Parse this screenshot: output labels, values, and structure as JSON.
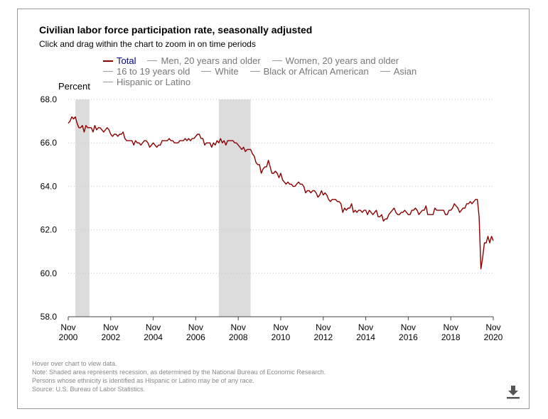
{
  "header": {
    "title": "Civilian labor force participation rate, seasonally adjusted",
    "subtitle": "Click and drag within the chart to zoom in on time periods"
  },
  "legend": [
    {
      "label": "Total",
      "active": true
    },
    {
      "label": "Men, 20 years and older",
      "active": false
    },
    {
      "label": "Women, 20 years and older",
      "active": false
    },
    {
      "label": "16 to 19 years old",
      "active": false
    },
    {
      "label": "White",
      "active": false
    },
    {
      "label": "Black or African American",
      "active": false
    },
    {
      "label": "Asian",
      "active": false
    },
    {
      "label": "Hispanic or Latino",
      "active": false
    }
  ],
  "footer": {
    "hover_hint": "Hover over chart to view data.",
    "note_recession": "Note: Shaded area represents recession, as determined by the National Bureau of Economic Research.",
    "note_ethnicity": "Persons whose ethnicity is identified as Hispanic or Latino may be of any race.",
    "source": "Source: U.S. Bureau of Labor Statistics."
  },
  "icons": {
    "download": "download-icon"
  },
  "colors": {
    "series": "#8b0000",
    "recession": "#dcdcdc",
    "active_legend_text": "#00008b"
  },
  "chart_data": {
    "type": "line",
    "ylabel": "Percent",
    "ylim": [
      58.0,
      68.0
    ],
    "yticks": [
      "58.0",
      "60.0",
      "62.0",
      "64.0",
      "66.0",
      "68.0"
    ],
    "xlim": [
      "2000-11",
      "2020-11"
    ],
    "xticks": [
      {
        "month": "Nov",
        "year": "2000"
      },
      {
        "month": "Nov",
        "year": "2002"
      },
      {
        "month": "Nov",
        "year": "2004"
      },
      {
        "month": "Nov",
        "year": "2006"
      },
      {
        "month": "Nov",
        "year": "2008"
      },
      {
        "month": "Nov",
        "year": "2010"
      },
      {
        "month": "Nov",
        "year": "2012"
      },
      {
        "month": "Nov",
        "year": "2014"
      },
      {
        "month": "Nov",
        "year": "2016"
      },
      {
        "month": "Nov",
        "year": "2018"
      },
      {
        "month": "Nov",
        "year": "2020"
      }
    ],
    "grid": "horizontal dotted",
    "recessions": [
      {
        "start": "2001-03",
        "end": "2001-11"
      },
      {
        "start": "2007-12",
        "end": "2009-06"
      }
    ],
    "series": [
      {
        "name": "Total",
        "points": [
          [
            "2000-11",
            66.9
          ],
          [
            "2000-12",
            67.0
          ],
          [
            "2001-01",
            67.2
          ],
          [
            "2001-02",
            67.1
          ],
          [
            "2001-03",
            67.2
          ],
          [
            "2001-04",
            66.9
          ],
          [
            "2001-05",
            66.7
          ],
          [
            "2001-06",
            66.7
          ],
          [
            "2001-07",
            66.8
          ],
          [
            "2001-08",
            66.5
          ],
          [
            "2001-09",
            66.8
          ],
          [
            "2001-10",
            66.7
          ],
          [
            "2001-11",
            66.7
          ],
          [
            "2001-12",
            66.7
          ],
          [
            "2002-01",
            66.5
          ],
          [
            "2002-02",
            66.8
          ],
          [
            "2002-03",
            66.6
          ],
          [
            "2002-04",
            66.7
          ],
          [
            "2002-05",
            66.7
          ],
          [
            "2002-06",
            66.6
          ],
          [
            "2002-07",
            66.5
          ],
          [
            "2002-08",
            66.6
          ],
          [
            "2002-09",
            66.7
          ],
          [
            "2002-10",
            66.6
          ],
          [
            "2002-11",
            66.4
          ],
          [
            "2002-12",
            66.3
          ],
          [
            "2003-01",
            66.4
          ],
          [
            "2003-02",
            66.4
          ],
          [
            "2003-03",
            66.3
          ],
          [
            "2003-04",
            66.4
          ],
          [
            "2003-05",
            66.4
          ],
          [
            "2003-06",
            66.5
          ],
          [
            "2003-07",
            66.2
          ],
          [
            "2003-08",
            66.1
          ],
          [
            "2003-09",
            66.1
          ],
          [
            "2003-10",
            66.1
          ],
          [
            "2003-11",
            66.1
          ],
          [
            "2003-12",
            65.9
          ],
          [
            "2004-01",
            66.1
          ],
          [
            "2004-02",
            66.0
          ],
          [
            "2004-03",
            66.0
          ],
          [
            "2004-04",
            65.9
          ],
          [
            "2004-05",
            66.0
          ],
          [
            "2004-06",
            66.1
          ],
          [
            "2004-07",
            66.1
          ],
          [
            "2004-08",
            66.0
          ],
          [
            "2004-09",
            65.8
          ],
          [
            "2004-10",
            65.9
          ],
          [
            "2004-11",
            66.0
          ],
          [
            "2004-12",
            65.9
          ],
          [
            "2005-01",
            65.8
          ],
          [
            "2005-02",
            65.9
          ],
          [
            "2005-03",
            65.9
          ],
          [
            "2005-04",
            66.1
          ],
          [
            "2005-05",
            66.1
          ],
          [
            "2005-06",
            66.1
          ],
          [
            "2005-07",
            66.1
          ],
          [
            "2005-08",
            66.2
          ],
          [
            "2005-09",
            66.1
          ],
          [
            "2005-10",
            66.1
          ],
          [
            "2005-11",
            66.0
          ],
          [
            "2005-12",
            66.0
          ],
          [
            "2006-01",
            66.0
          ],
          [
            "2006-02",
            66.1
          ],
          [
            "2006-03",
            66.1
          ],
          [
            "2006-04",
            66.1
          ],
          [
            "2006-05",
            66.2
          ],
          [
            "2006-06",
            66.1
          ],
          [
            "2006-07",
            66.2
          ],
          [
            "2006-08",
            66.1
          ],
          [
            "2006-09",
            66.2
          ],
          [
            "2006-10",
            66.2
          ],
          [
            "2006-11",
            66.3
          ],
          [
            "2006-12",
            66.4
          ],
          [
            "2007-01",
            66.4
          ],
          [
            "2007-02",
            66.2
          ],
          [
            "2007-03",
            66.2
          ],
          [
            "2007-04",
            65.9
          ],
          [
            "2007-05",
            66.0
          ],
          [
            "2007-06",
            66.0
          ],
          [
            "2007-07",
            66.0
          ],
          [
            "2007-08",
            65.8
          ],
          [
            "2007-09",
            66.0
          ],
          [
            "2007-10",
            65.9
          ],
          [
            "2007-11",
            66.1
          ],
          [
            "2007-12",
            66.0
          ],
          [
            "2008-01",
            66.2
          ],
          [
            "2008-02",
            66.0
          ],
          [
            "2008-03",
            66.1
          ],
          [
            "2008-04",
            65.9
          ],
          [
            "2008-05",
            66.1
          ],
          [
            "2008-06",
            66.1
          ],
          [
            "2008-07",
            66.1
          ],
          [
            "2008-08",
            66.1
          ],
          [
            "2008-09",
            66.0
          ],
          [
            "2008-10",
            66.0
          ],
          [
            "2008-11",
            65.9
          ],
          [
            "2008-12",
            65.8
          ],
          [
            "2009-01",
            65.7
          ],
          [
            "2009-02",
            65.8
          ],
          [
            "2009-03",
            65.6
          ],
          [
            "2009-04",
            65.7
          ],
          [
            "2009-05",
            65.7
          ],
          [
            "2009-06",
            65.7
          ],
          [
            "2009-07",
            65.5
          ],
          [
            "2009-08",
            65.4
          ],
          [
            "2009-09",
            65.1
          ],
          [
            "2009-10",
            65.0
          ],
          [
            "2009-11",
            65.0
          ],
          [
            "2009-12",
            64.6
          ],
          [
            "2010-01",
            64.8
          ],
          [
            "2010-02",
            64.9
          ],
          [
            "2010-03",
            64.9
          ],
          [
            "2010-04",
            65.2
          ],
          [
            "2010-05",
            64.9
          ],
          [
            "2010-06",
            64.6
          ],
          [
            "2010-07",
            64.6
          ],
          [
            "2010-08",
            64.7
          ],
          [
            "2010-09",
            64.6
          ],
          [
            "2010-10",
            64.4
          ],
          [
            "2010-11",
            64.6
          ],
          [
            "2010-12",
            64.3
          ],
          [
            "2011-01",
            64.2
          ],
          [
            "2011-02",
            64.1
          ],
          [
            "2011-03",
            64.2
          ],
          [
            "2011-04",
            64.1
          ],
          [
            "2011-05",
            64.1
          ],
          [
            "2011-06",
            64.0
          ],
          [
            "2011-07",
            64.0
          ],
          [
            "2011-08",
            64.1
          ],
          [
            "2011-09",
            64.2
          ],
          [
            "2011-10",
            64.1
          ],
          [
            "2011-11",
            64.1
          ],
          [
            "2011-12",
            64.0
          ],
          [
            "2012-01",
            63.7
          ],
          [
            "2012-02",
            63.8
          ],
          [
            "2012-03",
            63.8
          ],
          [
            "2012-04",
            63.7
          ],
          [
            "2012-05",
            63.8
          ],
          [
            "2012-06",
            63.8
          ],
          [
            "2012-07",
            63.7
          ],
          [
            "2012-08",
            63.5
          ],
          [
            "2012-09",
            63.6
          ],
          [
            "2012-10",
            63.8
          ],
          [
            "2012-11",
            63.6
          ],
          [
            "2012-12",
            63.7
          ],
          [
            "2013-01",
            63.6
          ],
          [
            "2013-02",
            63.4
          ],
          [
            "2013-03",
            63.3
          ],
          [
            "2013-04",
            63.4
          ],
          [
            "2013-05",
            63.4
          ],
          [
            "2013-06",
            63.4
          ],
          [
            "2013-07",
            63.3
          ],
          [
            "2013-08",
            63.3
          ],
          [
            "2013-09",
            63.2
          ],
          [
            "2013-10",
            62.8
          ],
          [
            "2013-11",
            63.0
          ],
          [
            "2013-12",
            62.9
          ],
          [
            "2014-01",
            63.0
          ],
          [
            "2014-02",
            63.0
          ],
          [
            "2014-03",
            63.2
          ],
          [
            "2014-04",
            62.8
          ],
          [
            "2014-05",
            62.9
          ],
          [
            "2014-06",
            62.8
          ],
          [
            "2014-07",
            62.9
          ],
          [
            "2014-08",
            62.9
          ],
          [
            "2014-09",
            62.8
          ],
          [
            "2014-10",
            62.9
          ],
          [
            "2014-11",
            62.9
          ],
          [
            "2014-12",
            62.7
          ],
          [
            "2015-01",
            62.9
          ],
          [
            "2015-02",
            62.8
          ],
          [
            "2015-03",
            62.7
          ],
          [
            "2015-04",
            62.8
          ],
          [
            "2015-05",
            62.9
          ],
          [
            "2015-06",
            62.6
          ],
          [
            "2015-07",
            62.6
          ],
          [
            "2015-08",
            62.7
          ],
          [
            "2015-09",
            62.4
          ],
          [
            "2015-10",
            62.5
          ],
          [
            "2015-11",
            62.5
          ],
          [
            "2015-12",
            62.7
          ],
          [
            "2016-01",
            62.8
          ],
          [
            "2016-02",
            62.9
          ],
          [
            "2016-03",
            63.0
          ],
          [
            "2016-04",
            62.8
          ],
          [
            "2016-05",
            62.7
          ],
          [
            "2016-06",
            62.7
          ],
          [
            "2016-07",
            62.8
          ],
          [
            "2016-08",
            62.8
          ],
          [
            "2016-09",
            62.9
          ],
          [
            "2016-10",
            62.8
          ],
          [
            "2016-11",
            62.7
          ],
          [
            "2016-12",
            62.7
          ],
          [
            "2017-01",
            62.9
          ],
          [
            "2017-02",
            62.9
          ],
          [
            "2017-03",
            63.0
          ],
          [
            "2017-04",
            62.9
          ],
          [
            "2017-05",
            62.7
          ],
          [
            "2017-06",
            62.8
          ],
          [
            "2017-07",
            62.9
          ],
          [
            "2017-08",
            62.9
          ],
          [
            "2017-09",
            63.1
          ],
          [
            "2017-10",
            62.7
          ],
          [
            "2017-11",
            62.7
          ],
          [
            "2017-12",
            62.7
          ],
          [
            "2018-01",
            62.7
          ],
          [
            "2018-02",
            63.0
          ],
          [
            "2018-03",
            62.9
          ],
          [
            "2018-04",
            62.9
          ],
          [
            "2018-05",
            62.9
          ],
          [
            "2018-06",
            62.9
          ],
          [
            "2018-07",
            62.9
          ],
          [
            "2018-08",
            62.7
          ],
          [
            "2018-09",
            62.7
          ],
          [
            "2018-10",
            62.9
          ],
          [
            "2018-11",
            62.9
          ],
          [
            "2018-12",
            63.0
          ],
          [
            "2019-01",
            63.2
          ],
          [
            "2019-02",
            63.1
          ],
          [
            "2019-03",
            63.0
          ],
          [
            "2019-04",
            62.8
          ],
          [
            "2019-05",
            62.9
          ],
          [
            "2019-06",
            63.0
          ],
          [
            "2019-07",
            63.0
          ],
          [
            "2019-08",
            63.2
          ],
          [
            "2019-09",
            63.2
          ],
          [
            "2019-10",
            63.3
          ],
          [
            "2019-11",
            63.2
          ],
          [
            "2019-12",
            63.3
          ],
          [
            "2020-01",
            63.4
          ],
          [
            "2020-02",
            63.4
          ],
          [
            "2020-03",
            62.6
          ],
          [
            "2020-04",
            60.2
          ],
          [
            "2020-05",
            60.7
          ],
          [
            "2020-06",
            61.4
          ],
          [
            "2020-07",
            61.4
          ],
          [
            "2020-08",
            61.7
          ],
          [
            "2020-09",
            61.4
          ],
          [
            "2020-10",
            61.7
          ],
          [
            "2020-11",
            61.5
          ]
        ]
      }
    ]
  }
}
